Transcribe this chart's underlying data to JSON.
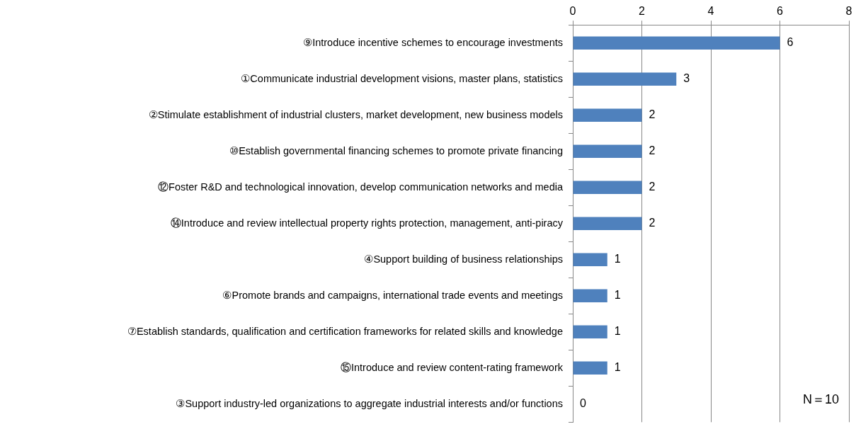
{
  "chart_data": {
    "type": "bar",
    "orientation": "horizontal",
    "categories": [
      "⑨Introduce incentive schemes to encourage investments",
      "①Communicate industrial development visions, master plans, statistics",
      "②Stimulate establishment of industrial clusters, market development, new business models",
      "⑩Establish governmental financing schemes to promote private financing",
      "⑫Foster R&D and technological innovation, develop communication networks and media",
      "⑭Introduce and review intellectual property rights protection, management, anti-piracy",
      "④Support building of business relationships",
      "⑥Promote brands and campaigns, international trade events and meetings",
      "⑦Establish standards, qualification and certification frameworks for related skills and knowledge",
      "⑮Introduce and review content-rating framework",
      "③Support industry-led organizations to aggregate industrial interests and/or functions"
    ],
    "values": [
      6,
      3,
      2,
      2,
      2,
      2,
      1,
      1,
      1,
      1,
      0
    ],
    "color": "#4f81bd",
    "xlim": [
      0,
      8
    ],
    "xticks": [
      0,
      2,
      4,
      6,
      8
    ],
    "grid": "x",
    "legend": false,
    "data_labels": true,
    "annotations": [
      "N＝10"
    ]
  }
}
